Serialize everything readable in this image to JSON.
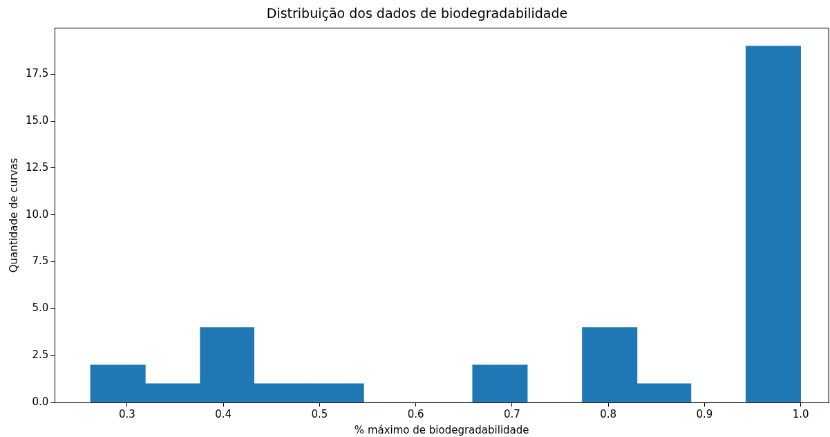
{
  "chart_data": {
    "type": "histogram",
    "title": "Distribuição dos dados de biodegradabilidade",
    "xlabel": "% máximo de biodegradabilidade",
    "ylabel": "Quantidade de curvas",
    "bins": [
      0.262,
      0.319,
      0.376,
      0.432,
      0.489,
      0.546,
      0.603,
      0.659,
      0.716,
      0.773,
      0.83,
      0.886,
      0.943,
      1.0
    ],
    "values": [
      2,
      1,
      4,
      1,
      1,
      0,
      0,
      2,
      0,
      4,
      1,
      0,
      19
    ],
    "color": "#1f77b4",
    "xlim": [
      0.225,
      1.029
    ],
    "ylim": [
      0,
      19.95
    ],
    "xticks": [
      0.3,
      0.4,
      0.5,
      0.6,
      0.7,
      0.8,
      0.9,
      {
        "value": 1.0,
        "label": "1.0"
      }
    ],
    "yticks": [
      {
        "value": 0,
        "label": "0.0"
      },
      2.5,
      {
        "value": 5,
        "label": "5.0"
      },
      7.5,
      {
        "value": 10,
        "label": "10.0"
      },
      12.5,
      {
        "value": 15,
        "label": "15.0"
      },
      17.5
    ],
    "grid": false,
    "legend": false
  }
}
